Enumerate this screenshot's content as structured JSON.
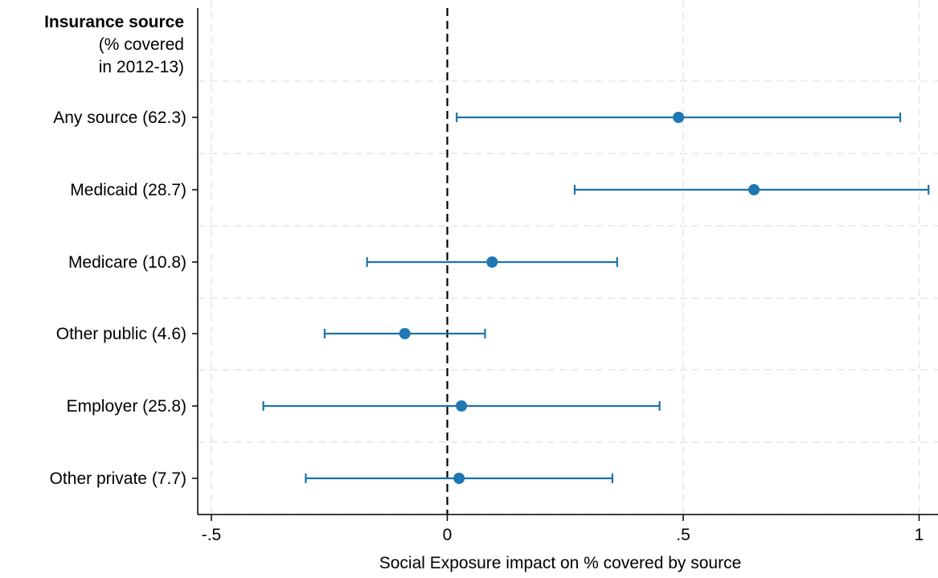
{
  "chart_data": {
    "type": "scatter",
    "subtype": "coefficient-plot",
    "header": {
      "title": "Insurance source",
      "line2": "(% covered",
      "line3": "in 2012-13)"
    },
    "categories": [
      "Any source (62.3)",
      "Medicaid (28.7)",
      "Medicare (10.8)",
      "Other public (4.6)",
      "Employer (25.8)",
      "Other private (7.7)"
    ],
    "estimates": [
      0.49,
      0.65,
      0.095,
      -0.09,
      0.03,
      0.025
    ],
    "ci_low": [
      0.02,
      0.27,
      -0.17,
      -0.26,
      -0.39,
      -0.3
    ],
    "ci_high": [
      0.96,
      1.02,
      0.36,
      0.08,
      0.45,
      0.35
    ],
    "xlabel": "Social Exposure impact on % covered by source",
    "xticks": [
      -0.5,
      0,
      0.5,
      1
    ],
    "xtick_labels": [
      "-.5",
      "0",
      ".5",
      "1"
    ],
    "xlim": [
      -0.525,
      1.04
    ],
    "reference_line_x": 0,
    "grid": true,
    "colors": {
      "marker": "#1f77b4",
      "ci": "#1a73aa",
      "grid": "#e6e6e6",
      "refline": "#000000"
    }
  }
}
